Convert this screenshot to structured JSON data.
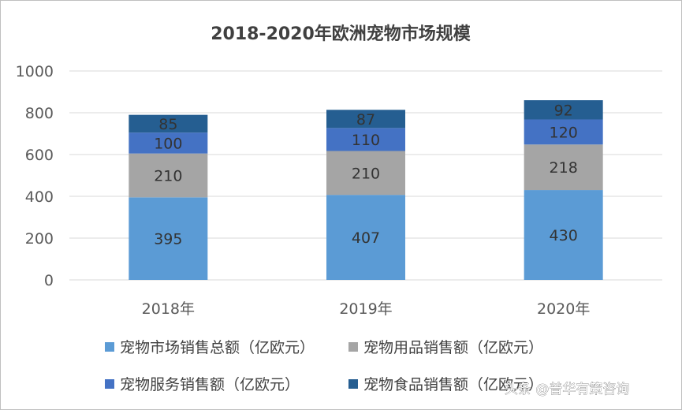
{
  "chart_data": {
    "type": "bar",
    "stacked": true,
    "title": "2018-2020年欧洲宠物市场规模",
    "categories": [
      "2018年",
      "2019年",
      "2020年"
    ],
    "series": [
      {
        "name": "宠物市场销售总额（亿欧元）",
        "values": [
          395,
          407,
          430
        ],
        "color": "#5b9bd5"
      },
      {
        "name": "宠物用品销售额（亿欧元）",
        "values": [
          210,
          210,
          218
        ],
        "color": "#a5a5a5"
      },
      {
        "name": "宠物服务销售额（亿欧元）",
        "values": [
          100,
          110,
          120
        ],
        "color": "#4472c4"
      },
      {
        "name": "宠物食品销售额（亿欧元）",
        "values": [
          85,
          87,
          92
        ],
        "color": "#255e91"
      }
    ],
    "ylim": [
      0,
      1000
    ],
    "yticks": [
      0,
      200,
      400,
      600,
      800,
      1000
    ],
    "grid": true,
    "legend": "bottom",
    "xlabel": "",
    "ylabel": ""
  },
  "watermark": "头条 @普华有策咨询",
  "colors": {
    "grid": "#d9d9d9",
    "axis_text": "#595959",
    "label_text": "#333333",
    "title_text": "#404040"
  }
}
